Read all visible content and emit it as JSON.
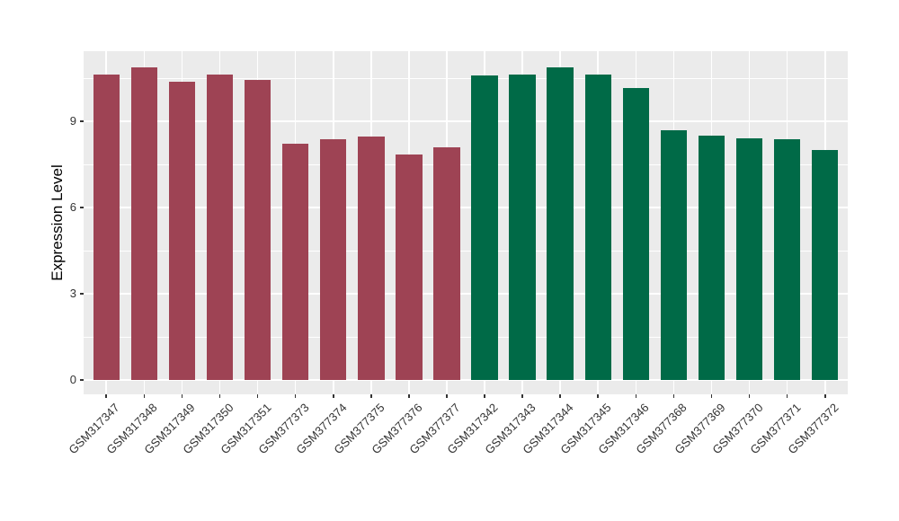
{
  "chart_data": {
    "type": "bar",
    "title": "",
    "xlabel": "",
    "ylabel": "Expression Level",
    "yticks": [
      0,
      3,
      6,
      9
    ],
    "minor_yticks": [
      1.5,
      4.5,
      7.5,
      10.5
    ],
    "ylim": [
      0,
      11.4
    ],
    "grid": "ggplot-style: white major + minor horizontal gridlines, white vertical gridline at each category, gray panel",
    "legend": "none",
    "categories": [
      "GSM317347",
      "GSM317348",
      "GSM317349",
      "GSM317350",
      "GSM317351",
      "GSM377373",
      "GSM377374",
      "GSM377375",
      "GSM377376",
      "GSM377377",
      "GSM317342",
      "GSM317343",
      "GSM317344",
      "GSM317345",
      "GSM317346",
      "GSM377368",
      "GSM377369",
      "GSM377370",
      "GSM377371",
      "GSM377372"
    ],
    "values": [
      10.64,
      10.87,
      10.39,
      10.62,
      10.43,
      8.22,
      8.38,
      8.46,
      7.84,
      8.08,
      10.58,
      10.61,
      10.89,
      10.64,
      10.15,
      8.69,
      8.51,
      8.41,
      8.37,
      7.99
    ],
    "groups": [
      0,
      0,
      0,
      0,
      0,
      0,
      0,
      0,
      0,
      0,
      1,
      1,
      1,
      1,
      1,
      1,
      1,
      1,
      1,
      1
    ],
    "group_colors": [
      "#9E4354",
      "#006A47"
    ],
    "panel_background": "#EBEBEB",
    "gridline_color": "#FFFFFF",
    "tick_mark_color": "#333333",
    "tick_label_color": "#333333"
  }
}
